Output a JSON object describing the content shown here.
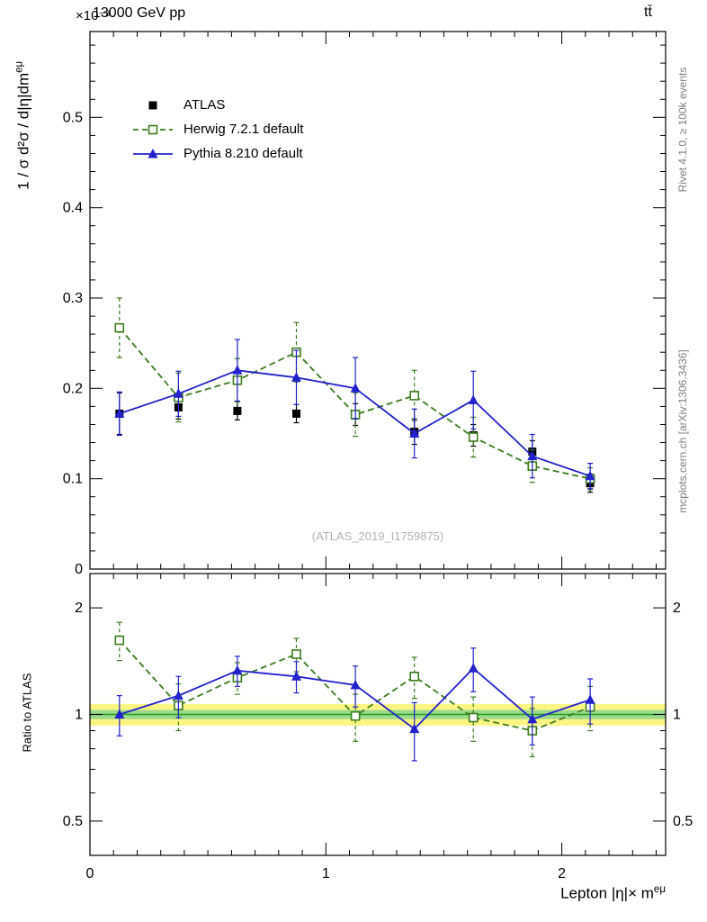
{
  "header": {
    "scale_label": "×10⁻³",
    "beam_energy": "13000 GeV pp",
    "process": "tt̄"
  },
  "side_notes": {
    "rivet": "Rivet 4.1.0, ≥ 100k events",
    "mcplots": "mcplots.cern.ch [arXiv:1306.3436]"
  },
  "watermark": "(ATLAS_2019_I1759875)",
  "axes": {
    "y_main": "1 / σ  d²σ / d|η|dm",
    "y_main_sup": "eμ",
    "y_ratio": "Ratio to ATLAS",
    "x": "Lepton |η|× m",
    "x_sup": "eμ"
  },
  "legend": [
    {
      "label": "ATLAS",
      "marker": "square-filled",
      "color": "#000000",
      "line": "none"
    },
    {
      "label": "Herwig 7.2.1 default",
      "marker": "square-open",
      "color": "#3c7d1e",
      "line": "dashed"
    },
    {
      "label": "Pythia 8.210 default",
      "marker": "triangle-filled",
      "color": "#2222cc",
      "line": "solid"
    }
  ],
  "chart_data": {
    "type": "line",
    "title": "13000 GeV pp",
    "process": "tt̄",
    "xlabel": "Lepton |η|× m^eμ",
    "ylabel": "1 / σ d²σ / d|η|dm^eμ (×10⁻³)",
    "x": [
      0.125,
      0.375,
      0.625,
      0.875,
      1.125,
      1.375,
      1.625,
      1.875,
      2.12
    ],
    "xlim": [
      0,
      2.44
    ],
    "x_major_ticks": [
      0,
      1,
      2
    ],
    "main_panel": {
      "ylim": [
        0,
        0.595
      ],
      "y_scale": "×10⁻³",
      "y_major_ticks": [
        0,
        0.1,
        0.2,
        0.3,
        0.4,
        0.5
      ],
      "series": [
        {
          "name": "ATLAS",
          "color": "#000000",
          "marker": "square-filled",
          "line": "none",
          "values": [
            0.172,
            0.179,
            0.175,
            0.172,
            0.171,
            0.152,
            0.148,
            0.13,
            0.095
          ],
          "errors": [
            0.023,
            0.013,
            0.01,
            0.01,
            0.012,
            0.014,
            0.012,
            0.012,
            0.01
          ]
        },
        {
          "name": "Herwig 7.2.1 default",
          "color": "#3c7d1e",
          "marker": "square-open",
          "line": "dashed",
          "values": [
            0.267,
            0.19,
            0.209,
            0.24,
            0.171,
            0.192,
            0.146,
            0.114,
            0.1
          ],
          "errors": [
            0.033,
            0.027,
            0.024,
            0.033,
            0.024,
            0.028,
            0.022,
            0.018,
            0.012
          ]
        },
        {
          "name": "Pythia 8.210 default",
          "color": "#2222cc",
          "marker": "triangle-filled",
          "line": "solid",
          "values": [
            0.172,
            0.194,
            0.22,
            0.212,
            0.2,
            0.15,
            0.187,
            0.125,
            0.103
          ],
          "errors": [
            0.024,
            0.025,
            0.034,
            0.03,
            0.034,
            0.027,
            0.032,
            0.024,
            0.014
          ]
        }
      ]
    },
    "ratio_panel": {
      "ylog": true,
      "ylim": [
        0.4,
        2.5
      ],
      "y_tick_labels": [
        0.5,
        1,
        2
      ],
      "y_minor_ticks": [
        0.4,
        0.6,
        0.7,
        0.8,
        0.9
      ],
      "band_outer": [
        0.93,
        1.07
      ],
      "band_inner": [
        0.97,
        1.03
      ],
      "band_outer_color": "#fbf683",
      "band_inner_color": "#9ed98e",
      "band_line_color": "#1ea21e",
      "series": [
        {
          "name": "Herwig 7.2.1 default",
          "color": "#3c7d1e",
          "marker": "square-open",
          "line": "dashed",
          "values": [
            1.62,
            1.06,
            1.27,
            1.48,
            0.99,
            1.28,
            0.98,
            0.9,
            1.05
          ],
          "errors": [
            0.2,
            0.16,
            0.13,
            0.16,
            0.15,
            0.17,
            0.14,
            0.14,
            0.15
          ]
        },
        {
          "name": "Pythia 8.210 default",
          "color": "#2222cc",
          "marker": "triangle-filled",
          "line": "solid",
          "values": [
            1.0,
            1.13,
            1.33,
            1.28,
            1.21,
            0.91,
            1.35,
            0.97,
            1.1
          ],
          "errors": [
            0.13,
            0.15,
            0.13,
            0.13,
            0.16,
            0.17,
            0.19,
            0.15,
            0.16
          ]
        }
      ]
    }
  }
}
